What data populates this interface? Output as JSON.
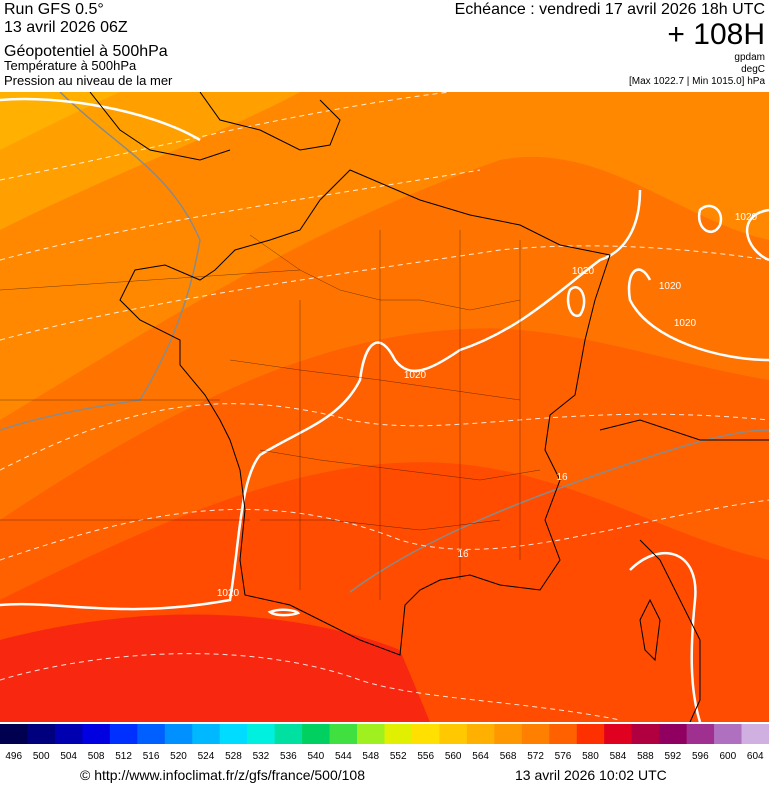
{
  "header": {
    "run": "Run GFS 0.5°",
    "date": "13 avril 2026 06Z",
    "title": "Géopotentiel à 500hPa",
    "subtitle1": "Température à 500hPa",
    "subtitle2": "Pression au niveau de la mer",
    "echeance": "Echéance : vendredi 17 avril 2026 18h UTC",
    "lead": "+ 108H",
    "unit1": "gpdam",
    "unit2": "degC",
    "range": "[Max 1022.7 | Min 1015.0] hPa"
  },
  "map": {
    "contour_labels": [
      "1020",
      "1020",
      "1020",
      "1020",
      "1020",
      "1020",
      "16",
      "16"
    ]
  },
  "colorbar": {
    "labels": [
      496,
      500,
      504,
      508,
      512,
      516,
      520,
      524,
      528,
      532,
      536,
      540,
      544,
      548,
      552,
      556,
      560,
      564,
      568,
      572,
      576,
      580,
      584,
      588,
      592,
      596,
      600,
      604
    ],
    "colors": [
      "#000050",
      "#00007f",
      "#0000b0",
      "#0000e0",
      "#0030ff",
      "#0060ff",
      "#0090ff",
      "#00b8ff",
      "#00dcff",
      "#00f0e0",
      "#00e0a0",
      "#00d060",
      "#40e040",
      "#a0f020",
      "#e0f000",
      "#ffe000",
      "#ffc800",
      "#ffb000",
      "#ff9800",
      "#ff8000",
      "#ff6000",
      "#ff3000",
      "#e00020",
      "#b00040",
      "#900060",
      "#a03090",
      "#b070c0",
      "#d0b0e0"
    ]
  },
  "footer": {
    "url": "© http://www.infoclimat.fr/z/gfs/france/500/108",
    "timestamp": "13 avril 2026 10:02 UTC"
  }
}
